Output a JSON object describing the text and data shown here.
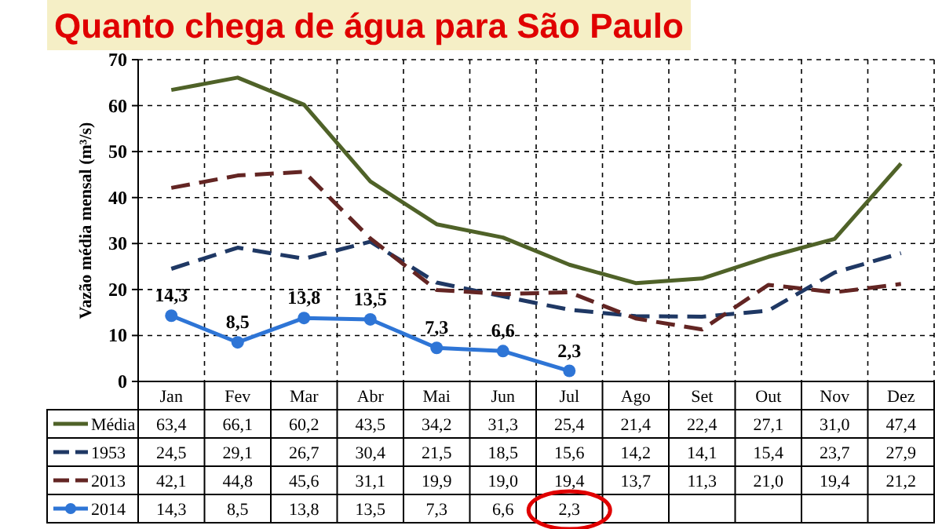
{
  "chart_data": {
    "type": "line",
    "title": "Quanto chega de água para São Paulo",
    "ylabel": "Vazão média mensal (m³/s)",
    "categories": [
      "Jan",
      "Fev",
      "Mar",
      "Abr",
      "Mai",
      "Jun",
      "Jul",
      "Ago",
      "Set",
      "Out",
      "Nov",
      "Dez"
    ],
    "ylim": [
      0,
      70
    ],
    "yticks": [
      0,
      10,
      20,
      30,
      40,
      50,
      60,
      70
    ],
    "grid": true,
    "legend": "bottom",
    "series": [
      {
        "name": "Média",
        "color": "#4f6228",
        "line_style": "solid",
        "marker": "none",
        "values": [
          63.4,
          66.1,
          60.2,
          43.5,
          34.2,
          31.3,
          25.4,
          21.4,
          22.4,
          27.1,
          31.0,
          47.4
        ],
        "value_labels": [
          "63,4",
          "66,1",
          "60,2",
          "43,5",
          "34,2",
          "31,3",
          "25,4",
          "21,4",
          "22,4",
          "27,1",
          "31,0",
          "47,4"
        ]
      },
      {
        "name": "1953",
        "color": "#1f3864",
        "line_style": "dashed",
        "marker": "none",
        "values": [
          24.5,
          29.1,
          26.7,
          30.4,
          21.5,
          18.5,
          15.6,
          14.2,
          14.1,
          15.4,
          23.7,
          27.9
        ],
        "value_labels": [
          "24,5",
          "29,1",
          "26,7",
          "30,4",
          "21,5",
          "18,5",
          "15,6",
          "14,2",
          "14,1",
          "15,4",
          "23,7",
          "27,9"
        ]
      },
      {
        "name": "2013",
        "color": "#632523",
        "line_style": "dashed",
        "marker": "none",
        "values": [
          42.1,
          44.8,
          45.6,
          31.1,
          19.9,
          19.0,
          19.4,
          13.7,
          11.3,
          21.0,
          19.4,
          21.2
        ],
        "value_labels": [
          "42,1",
          "44,8",
          "45,6",
          "31,1",
          "19,9",
          "19,0",
          "19,4",
          "13,7",
          "11,3",
          "21,0",
          "19,4",
          "21,2"
        ]
      },
      {
        "name": "2014",
        "color": "#2e75d6",
        "line_style": "solid",
        "marker": "circle",
        "data_labels": true,
        "values": [
          14.3,
          8.5,
          13.8,
          13.5,
          7.3,
          6.6,
          2.3,
          null,
          null,
          null,
          null,
          null
        ],
        "value_labels": [
          "14,3",
          "8,5",
          "13,8",
          "13,5",
          "7,3",
          "6,6",
          "2,3",
          null,
          null,
          null,
          null,
          null
        ]
      }
    ]
  }
}
